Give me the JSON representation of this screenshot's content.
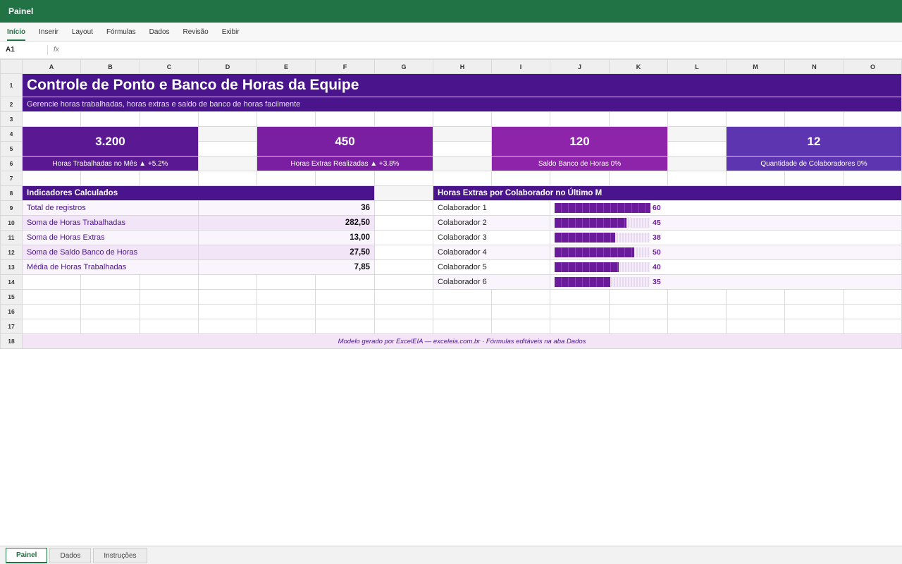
{
  "app": {
    "title": "Painel"
  },
  "ribbon": {
    "tabs": [
      "Início",
      "Inserir",
      "Layout",
      "Fórmulas",
      "Dados",
      "Revisão",
      "Exibir"
    ],
    "active": 0
  },
  "formula_bar": {
    "cell_ref": "A1",
    "fx": "fx"
  },
  "columns": [
    "A",
    "B",
    "C",
    "D",
    "E",
    "F",
    "G",
    "H",
    "I",
    "J",
    "K",
    "L",
    "M",
    "N",
    "O"
  ],
  "rows": [
    "1",
    "2",
    "3",
    "4",
    "5",
    "6",
    "7",
    "8",
    "9",
    "10",
    "11",
    "12",
    "13",
    "14",
    "15",
    "16",
    "17",
    "18"
  ],
  "header": {
    "title": "Controle de Ponto e Banco de Horas da Equipe",
    "subtitle": "Gerencie horas trabalhadas, horas extras e saldo de banco de horas facilmente"
  },
  "kpis": [
    {
      "value": "3.200",
      "label": "Horas Trabalhadas no Mês ▲ +5.2%",
      "color": "#5b1893"
    },
    {
      "value": "450",
      "label": "Horas Extras Realizadas ▲ +3.8%",
      "color": "#7b1fa2"
    },
    {
      "value": "120",
      "label": "Saldo Banco de Horas 0%",
      "color": "#8e24aa"
    },
    {
      "value": "12",
      "label": "Quantidade de Colaboradores 0%",
      "color": "#5e35b1"
    }
  ],
  "indicators": {
    "title": "Indicadores Calculados",
    "items": [
      {
        "label": "Total de registros",
        "value": "36"
      },
      {
        "label": "Soma de Horas Trabalhadas",
        "value": "282,50"
      },
      {
        "label": "Soma de Horas Extras",
        "value": "13,00"
      },
      {
        "label": "Soma de Saldo Banco de Horas",
        "value": "27,50"
      },
      {
        "label": "Média de Horas Trabalhadas",
        "value": "7,85"
      }
    ]
  },
  "overtime": {
    "title": "Horas Extras por Colaborador no Último M",
    "max": 60,
    "items": [
      {
        "label": "Colaborador 1",
        "value": 60
      },
      {
        "label": "Colaborador 2",
        "value": 45
      },
      {
        "label": "Colaborador 3",
        "value": 38
      },
      {
        "label": "Colaborador 4",
        "value": 50
      },
      {
        "label": "Colaborador 5",
        "value": 40
      },
      {
        "label": "Colaborador 6",
        "value": 35
      }
    ]
  },
  "footer": {
    "text": "Modelo gerado por ExcelEIA — exceleia.com.br · Fórmulas editáveis na aba Dados"
  },
  "sheet_tabs": [
    "Painel",
    "Dados",
    "Instruções"
  ],
  "colors": {
    "brand": "#217346",
    "primary": "#4a148c",
    "bar": "#6a1b9a"
  }
}
